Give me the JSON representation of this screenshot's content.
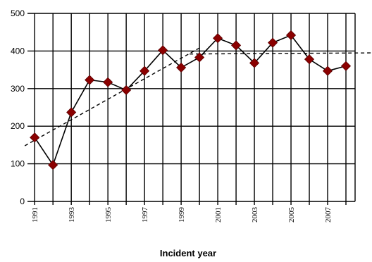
{
  "chart_data": {
    "type": "line",
    "title": "",
    "xlabel": "Incident year",
    "ylabel": "",
    "x": [
      1991,
      1992,
      1993,
      1994,
      1995,
      1996,
      1997,
      1998,
      1999,
      2000,
      2001,
      2002,
      2003,
      2004,
      2005,
      2006,
      2007,
      2008
    ],
    "series": [
      {
        "values": [
          170,
          97,
          237,
          323,
          317,
          296,
          347,
          402,
          356,
          383,
          434,
          415,
          368,
          422,
          442,
          378,
          347,
          360
        ]
      }
    ],
    "trendlines": [
      {
        "style": "dashed",
        "x": [
          1991,
          2000
        ],
        "y": [
          148,
          408
        ]
      },
      {
        "style": "dashed",
        "x": [
          2000,
          2008.5
        ],
        "y": [
          392,
          395
        ]
      }
    ],
    "ylim": [
      0,
      500
    ],
    "yticks": [
      0,
      100,
      200,
      300,
      400,
      500
    ],
    "xtick_labels": [
      "1991",
      "1993",
      "1995",
      "1997",
      "1999",
      "2001",
      "2003",
      "2005",
      "2007"
    ],
    "grid": true,
    "legend": "none",
    "colors": {
      "marker": "#8b0000",
      "line": "#000000",
      "grid": "#000000"
    }
  }
}
